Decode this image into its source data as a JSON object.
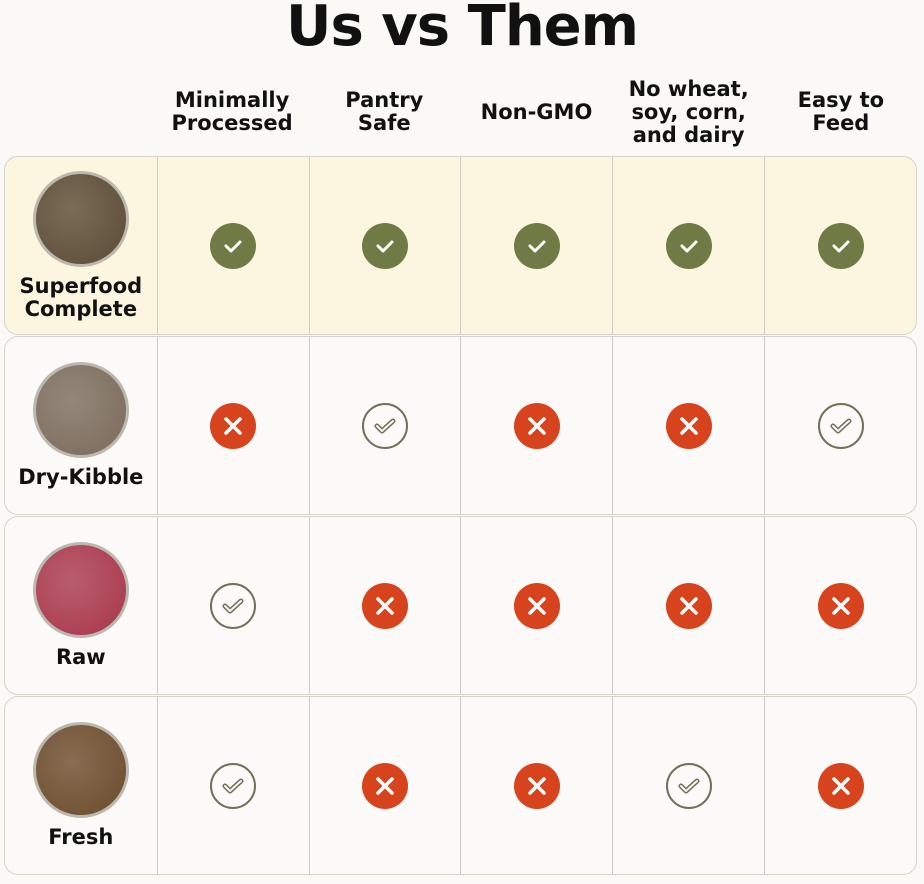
{
  "title": "Us vs Them",
  "columns": [
    "Minimally\nProcessed",
    "Pantry\nSafe",
    "Non-GMO",
    "No wheat,\nsoy, corn,\nand dairy",
    "Easy to\nFeed"
  ],
  "colors": {
    "check_fill": "#6f7a45",
    "check_outline": "#6f7159",
    "cross": "#d7431d",
    "highlight": "#fcf6e1"
  },
  "rows": [
    {
      "name": "Superfood\nComplete",
      "image": "bowl-superfood",
      "bowl_color": "#5a4a35",
      "values": [
        "check-filled",
        "check-filled",
        "check-filled",
        "check-filled",
        "check-filled"
      ]
    },
    {
      "name": "Dry-Kibble",
      "image": "bowl-kibble",
      "bowl_color": "#7a6a5a",
      "values": [
        "cross",
        "check-outline",
        "cross",
        "cross",
        "check-outline"
      ]
    },
    {
      "name": "Raw",
      "image": "bowl-raw",
      "bowl_color": "#a8364a",
      "values": [
        "check-outline",
        "cross",
        "cross",
        "cross",
        "cross"
      ]
    },
    {
      "name": "Fresh",
      "image": "bowl-fresh",
      "bowl_color": "#6b4a2a",
      "values": [
        "check-outline",
        "cross",
        "cross",
        "check-outline",
        "cross"
      ]
    }
  ]
}
